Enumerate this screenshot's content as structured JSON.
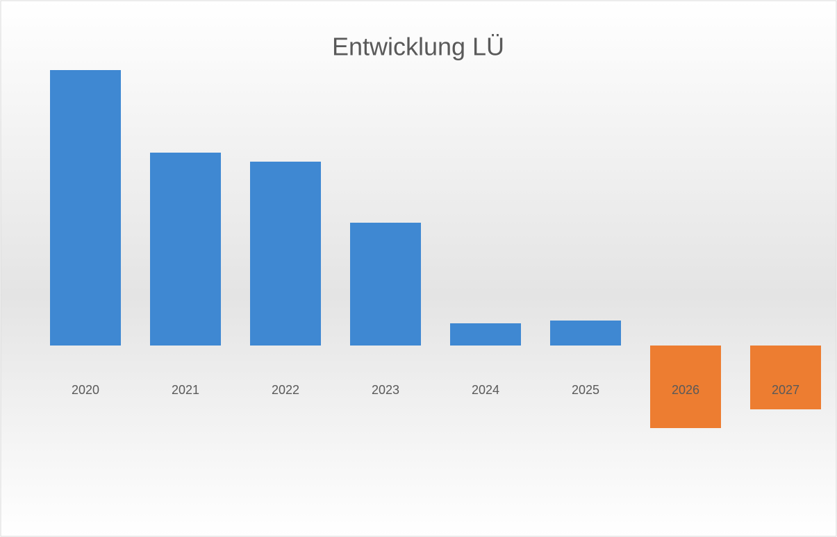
{
  "chart_data": {
    "type": "bar",
    "title": "Entwicklung LÜ",
    "categories": [
      "2020",
      "2021",
      "2022",
      "2023",
      "2024",
      "2025",
      "2026",
      "2027"
    ],
    "values": [
      397,
      278,
      265,
      177,
      32,
      36,
      -119,
      -92
    ],
    "colors": [
      "#3f88d2",
      "#3f88d2",
      "#3f88d2",
      "#3f88d2",
      "#3f88d2",
      "#3f88d2",
      "#ed7d31",
      "#ed7d31"
    ],
    "ylim": [
      -240,
      400
    ]
  }
}
